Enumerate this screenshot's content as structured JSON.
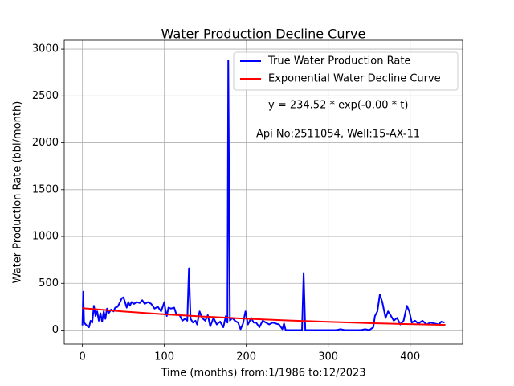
{
  "chart_data": {
    "type": "line",
    "title": "Water Production Decline Curve",
    "xlabel": "Time (months) from:1/1986 to:12/2023",
    "ylabel": "Water Production Rate (bbl/month)",
    "annotations": [
      "y = 234.52 * exp(-0.00 * t)",
      "Api No:2511054, Well:15-AX-11"
    ],
    "xlim": [
      -22.2,
      464
    ],
    "ylim": [
      -150,
      3095
    ],
    "xticks": [
      0,
      100,
      200,
      300,
      400
    ],
    "yticks": [
      0,
      500,
      1000,
      1500,
      2000,
      2500,
      3000
    ],
    "grid": true,
    "legend": "upper right",
    "series": [
      {
        "name": "True Water Production Rate",
        "color": "#0000ff",
        "x": [
          0,
          1,
          2,
          5,
          8,
          10,
          12,
          14,
          16,
          18,
          20,
          22,
          24,
          26,
          28,
          30,
          32,
          35,
          38,
          40,
          43,
          46,
          48,
          50,
          52,
          54,
          56,
          58,
          60,
          63,
          66,
          70,
          73,
          76,
          80,
          84,
          88,
          92,
          96,
          100,
          101,
          103,
          105,
          108,
          112,
          115,
          118,
          122,
          125,
          128,
          130,
          132,
          135,
          138,
          140,
          143,
          146,
          150,
          153,
          156,
          160,
          164,
          168,
          172,
          175,
          177,
          178,
          180,
          183,
          186,
          190,
          193,
          196,
          199,
          202,
          206,
          209,
          212,
          216,
          220,
          224,
          228,
          232,
          236,
          240,
          244,
          246,
          248,
          260,
          268,
          270,
          272,
          290,
          310,
          315,
          320,
          340,
          345,
          350,
          355,
          357,
          360,
          363,
          366,
          370,
          373,
          376,
          380,
          384,
          388,
          392,
          396,
          399,
          402,
          406,
          410,
          415,
          420,
          425,
          430,
          435,
          438,
          442
        ],
        "values": [
          50,
          410,
          80,
          50,
          30,
          100,
          80,
          260,
          150,
          200,
          100,
          180,
          90,
          200,
          120,
          230,
          180,
          220,
          200,
          240,
          250,
          300,
          340,
          350,
          300,
          240,
          300,
          260,
          300,
          280,
          300,
          290,
          320,
          280,
          300,
          280,
          230,
          250,
          200,
          300,
          230,
          150,
          240,
          230,
          240,
          160,
          170,
          100,
          120,
          100,
          660,
          120,
          80,
          100,
          60,
          200,
          130,
          100,
          160,
          40,
          130,
          60,
          90,
          30,
          150,
          80,
          2880,
          100,
          130,
          100,
          80,
          10,
          70,
          200,
          60,
          130,
          80,
          80,
          30,
          100,
          80,
          60,
          80,
          70,
          60,
          10,
          70,
          0,
          0,
          0,
          610,
          0,
          0,
          0,
          10,
          0,
          0,
          10,
          0,
          30,
          150,
          200,
          380,
          300,
          130,
          200,
          160,
          100,
          130,
          60,
          100,
          260,
          200,
          80,
          100,
          70,
          100,
          60,
          80,
          70,
          60,
          90,
          80
        ]
      },
      {
        "name": "Exponential Water Decline Curve",
        "color": "#ff0000",
        "x": [
          0,
          50,
          100,
          150,
          200,
          250,
          300,
          350,
          400,
          443
        ],
        "values": [
          234.52,
          199.1,
          169.0,
          143.5,
          121.8,
          103.4,
          87.8,
          74.5,
          63.3,
          55.2
        ]
      }
    ]
  }
}
